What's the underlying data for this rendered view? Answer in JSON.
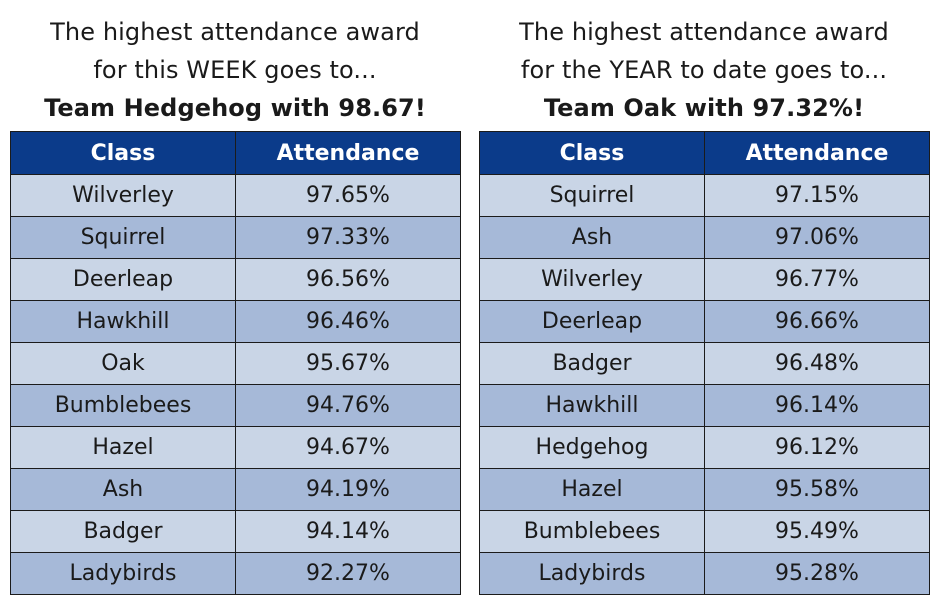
{
  "week": {
    "heading_line1": "The highest attendance award",
    "heading_line2": "for this WEEK goes to...",
    "winner": "Team Hedgehog with 98.67!",
    "header_class": "Class",
    "header_attendance": "Attendance",
    "rows": [
      {
        "class": "Wilverley",
        "attendance": "97.65%"
      },
      {
        "class": "Squirrel",
        "attendance": "97.33%"
      },
      {
        "class": "Deerleap",
        "attendance": "96.56%"
      },
      {
        "class": "Hawkhill",
        "attendance": "96.46%"
      },
      {
        "class": "Oak",
        "attendance": "95.67%"
      },
      {
        "class": "Bumblebees",
        "attendance": "94.76%"
      },
      {
        "class": "Hazel",
        "attendance": "94.67%"
      },
      {
        "class": "Ash",
        "attendance": "94.19%"
      },
      {
        "class": "Badger",
        "attendance": "94.14%"
      },
      {
        "class": "Ladybirds",
        "attendance": "92.27%"
      }
    ]
  },
  "year": {
    "heading_line1": "The highest attendance award",
    "heading_line2": "for the YEAR to date goes to...",
    "winner": "Team Oak with 97.32%!",
    "header_class": "Class",
    "header_attendance": "Attendance",
    "rows": [
      {
        "class": "Squirrel",
        "attendance": "97.15%"
      },
      {
        "class": "Ash",
        "attendance": "97.06%"
      },
      {
        "class": "Wilverley",
        "attendance": "96.77%"
      },
      {
        "class": "Deerleap",
        "attendance": "96.66%"
      },
      {
        "class": "Badger",
        "attendance": "96.48%"
      },
      {
        "class": "Hawkhill",
        "attendance": "96.14%"
      },
      {
        "class": "Hedgehog",
        "attendance": "96.12%"
      },
      {
        "class": "Hazel",
        "attendance": "95.58%"
      },
      {
        "class": "Bumblebees",
        "attendance": "95.49%"
      },
      {
        "class": "Ladybirds",
        "attendance": "95.28%"
      }
    ]
  },
  "colors": {
    "header_bg": "#0b3b8a",
    "row_light": "#c9d5e6",
    "row_dark": "#a6b9d8"
  }
}
